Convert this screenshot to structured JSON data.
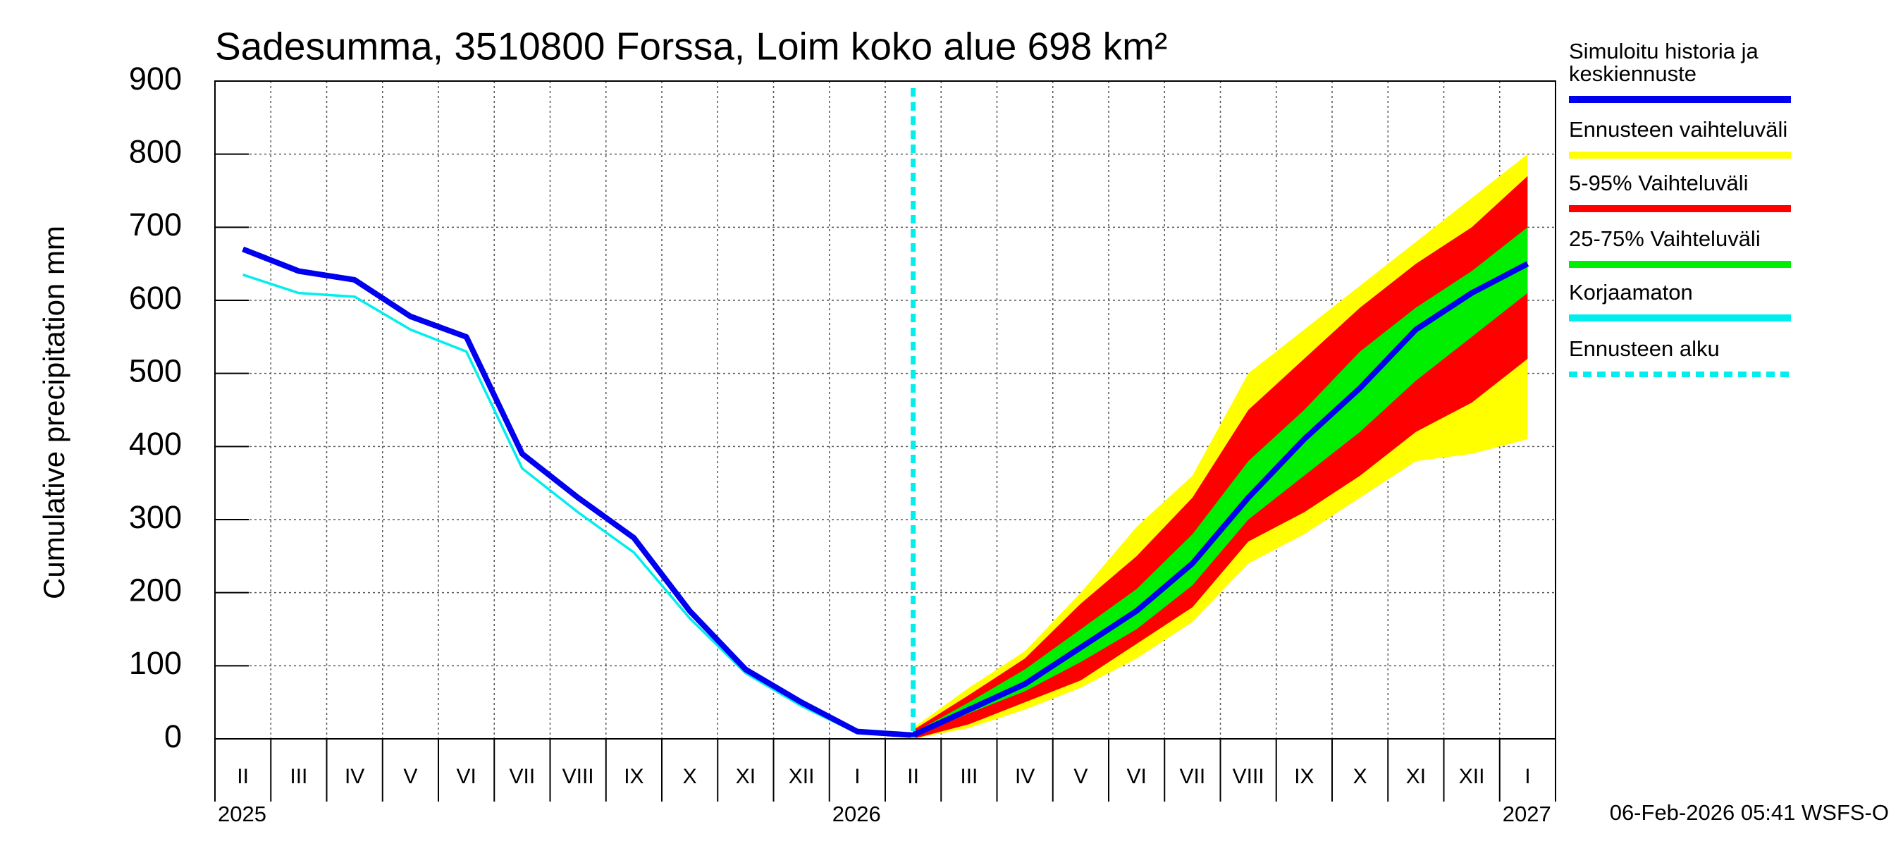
{
  "chart_data": {
    "type": "band-line",
    "title": "Sadesumma, 3510800 Forssa, Loim koko alue 698 km²",
    "y_label": "Cumulative precipitation   mm",
    "footer": "06-Feb-2026 05:41 WSFS-O",
    "categories": [
      "II",
      "III",
      "IV",
      "V",
      "VI",
      "VII",
      "VIII",
      "IX",
      "X",
      "XI",
      "XII",
      "I",
      "II",
      "III",
      "IV",
      "V",
      "VI",
      "VII",
      "VIII",
      "IX",
      "X",
      "XI",
      "XII",
      "I"
    ],
    "years": [
      "2025",
      null,
      null,
      null,
      null,
      null,
      null,
      null,
      null,
      null,
      null,
      "2026",
      null,
      null,
      null,
      null,
      null,
      null,
      null,
      null,
      null,
      null,
      null,
      "2027"
    ],
    "ylim": [
      0,
      900
    ],
    "yticks": [
      0,
      100,
      200,
      300,
      400,
      500,
      600,
      700,
      800,
      900
    ],
    "grid": true,
    "series": [
      {
        "name": "Simuloitu historia ja\nkeskiennuste",
        "color": "#0000ee",
        "kind": "line",
        "values": [
          670,
          640,
          628,
          578,
          550,
          390,
          330,
          275,
          175,
          95,
          50,
          10,
          5,
          40,
          75,
          125,
          175,
          240,
          330,
          410,
          480,
          560,
          610,
          650
        ]
      },
      {
        "name": "Ennusteen vaihteluväli",
        "color": "#ffff00",
        "kind": "band",
        "values": [
          null,
          null,
          null,
          null,
          null,
          null,
          null,
          null,
          null,
          null,
          null,
          null,
          15,
          70,
          120,
          200,
          290,
          360,
          500,
          560,
          620,
          680,
          740,
          800
        ],
        "lower": [
          null,
          null,
          null,
          null,
          null,
          null,
          null,
          null,
          null,
          null,
          null,
          null,
          0,
          15,
          40,
          70,
          110,
          160,
          240,
          280,
          330,
          380,
          390,
          410
        ]
      },
      {
        "name": "5-95% Vaihteluväli",
        "color": "#ff0000",
        "kind": "band",
        "values": [
          null,
          null,
          null,
          null,
          null,
          null,
          null,
          null,
          null,
          null,
          null,
          null,
          12,
          60,
          110,
          185,
          250,
          330,
          450,
          520,
          590,
          650,
          700,
          770
        ],
        "lower": [
          null,
          null,
          null,
          null,
          null,
          null,
          null,
          null,
          null,
          null,
          null,
          null,
          0,
          20,
          50,
          80,
          130,
          180,
          270,
          310,
          360,
          420,
          460,
          520
        ]
      },
      {
        "name": "25-75% Vaihteluväli",
        "color": "#00ee00",
        "kind": "band",
        "values": [
          null,
          null,
          null,
          null,
          null,
          null,
          null,
          null,
          null,
          null,
          null,
          null,
          8,
          50,
          95,
          150,
          205,
          280,
          380,
          450,
          530,
          590,
          640,
          700
        ],
        "lower": [
          null,
          null,
          null,
          null,
          null,
          null,
          null,
          null,
          null,
          null,
          null,
          null,
          3,
          35,
          65,
          105,
          150,
          210,
          300,
          360,
          420,
          490,
          550,
          610
        ]
      },
      {
        "name": "Korjaamaton",
        "color": "#00eeee",
        "kind": "line",
        "values": [
          635,
          610,
          605,
          560,
          530,
          370,
          310,
          255,
          165,
          90,
          45,
          8,
          null,
          null,
          null,
          null,
          null,
          null,
          null,
          null,
          null,
          null,
          null,
          null
        ]
      }
    ],
    "forecast_start": {
      "name": "Ennusteen alku",
      "color": "#00eeee"
    }
  }
}
